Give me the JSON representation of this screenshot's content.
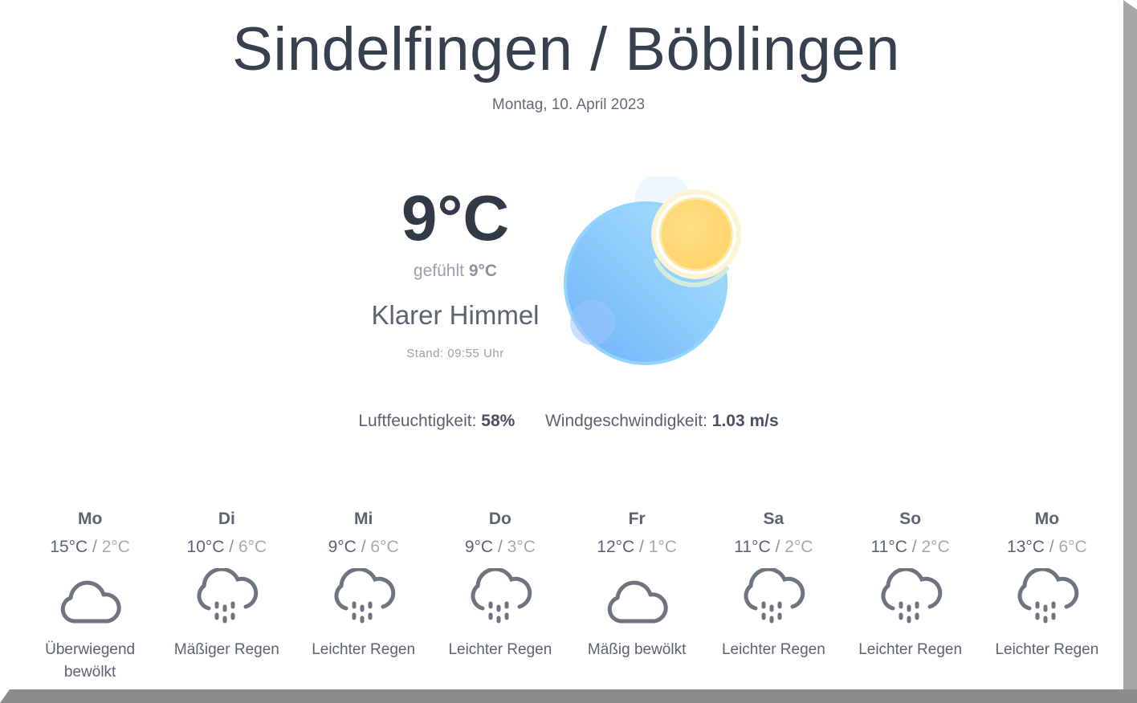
{
  "header": {
    "city": "Sindelfingen / Böblingen",
    "date": "Montag, 10. April 2023"
  },
  "current": {
    "temperature": "9°C",
    "feels_label": "gefühlt",
    "feels_value": "9°C",
    "condition": "Klarer Himmel",
    "updated": "Stand: 09:55 Uhr",
    "icon": "clear-sky-icon"
  },
  "stats": {
    "humidity_label": "Luftfeuchtigkeit:",
    "humidity_value": "58%",
    "wind_label": "Windgeschwindigkeit:",
    "wind_value": "1.03 m/s"
  },
  "forecast": [
    {
      "day": "Mo",
      "high": "15°C",
      "low": "2°C",
      "desc": "Überwiegend bewölkt",
      "icon": "cloud-icon"
    },
    {
      "day": "Di",
      "high": "10°C",
      "low": "6°C",
      "desc": "Mäßiger Regen",
      "icon": "rain-cloud-icon"
    },
    {
      "day": "Mi",
      "high": "9°C",
      "low": "6°C",
      "desc": "Leichter Regen",
      "icon": "rain-cloud-icon"
    },
    {
      "day": "Do",
      "high": "9°C",
      "low": "3°C",
      "desc": "Leichter Regen",
      "icon": "rain-cloud-icon"
    },
    {
      "day": "Fr",
      "high": "12°C",
      "low": "1°C",
      "desc": "Mäßig bewölkt",
      "icon": "cloud-icon"
    },
    {
      "day": "Sa",
      "high": "11°C",
      "low": "2°C",
      "desc": "Leichter Regen",
      "icon": "rain-cloud-icon"
    },
    {
      "day": "So",
      "high": "11°C",
      "low": "2°C",
      "desc": "Leichter Regen",
      "icon": "rain-cloud-icon"
    },
    {
      "day": "Mo",
      "high": "13°C",
      "low": "6°C",
      "desc": "Leichter Regen",
      "icon": "rain-cloud-icon"
    }
  ],
  "colors": {
    "text_dark": "#36404e",
    "text_muted": "#9aa0a9",
    "icon_stroke": "#6e7480",
    "sky_blue": "#7cc3f7",
    "sun_yellow": "#ffd776"
  }
}
